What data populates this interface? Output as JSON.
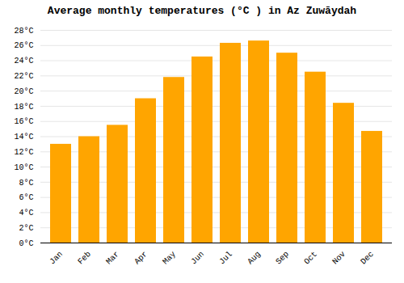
{
  "chart_data": {
    "type": "bar",
    "title": "Average monthly temperatures (°C ) in Az Zuwāydah",
    "categories": [
      "Jan",
      "Feb",
      "Mar",
      "Apr",
      "May",
      "Jun",
      "Jul",
      "Aug",
      "Sep",
      "Oct",
      "Nov",
      "Dec"
    ],
    "values": [
      13,
      14,
      15.5,
      19,
      21.8,
      24.5,
      26.3,
      26.6,
      25,
      22.5,
      18.4,
      14.7
    ],
    "color": "#FFA500",
    "ylim": [
      0,
      28
    ],
    "yticks": [
      {
        "value": 0,
        "label": "0°C"
      },
      {
        "value": 2,
        "label": "2°C"
      },
      {
        "value": 4,
        "label": "4°C"
      },
      {
        "value": 6,
        "label": "6°C"
      },
      {
        "value": 8,
        "label": "8°C"
      },
      {
        "value": 10,
        "label": "10°C"
      },
      {
        "value": 12,
        "label": "12°C"
      },
      {
        "value": 14,
        "label": "14°C"
      },
      {
        "value": 16,
        "label": "16°C"
      },
      {
        "value": 18,
        "label": "18°C"
      },
      {
        "value": 20,
        "label": "20°C"
      },
      {
        "value": 22,
        "label": "22°C"
      },
      {
        "value": 24,
        "label": "24°C"
      },
      {
        "value": 26,
        "label": "26°C"
      },
      {
        "value": 28,
        "label": "28°C"
      }
    ],
    "grid": true
  }
}
